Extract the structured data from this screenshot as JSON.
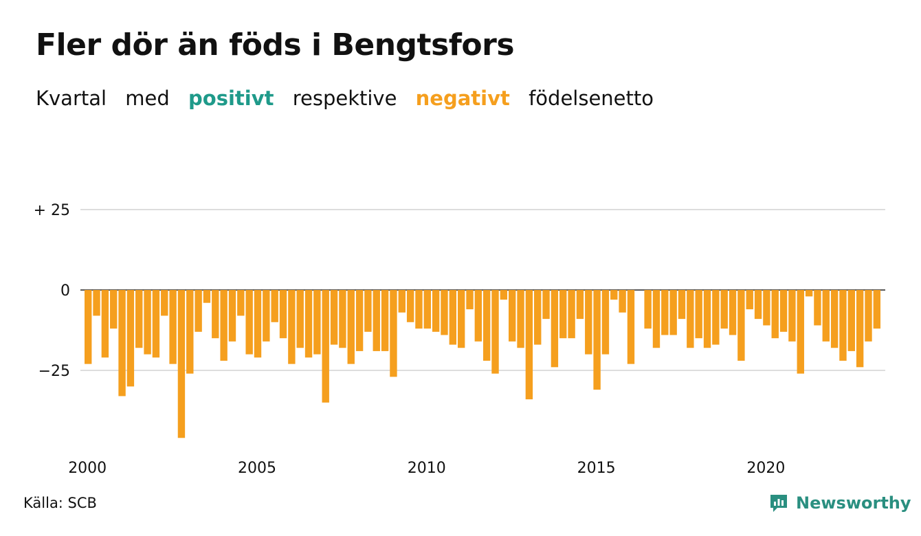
{
  "header": {
    "title": "Fler dör än föds i Bengtsfors",
    "subtitle": {
      "w1": "Kvartal",
      "w2": "med",
      "positive": "positivt",
      "w3": "respektive",
      "negative": "negativt",
      "w4": "födelsenetto"
    }
  },
  "footer": {
    "source": "Källa: SCB",
    "brand": "Newsworthy"
  },
  "colors": {
    "positive": "#1f9a8a",
    "negative": "#f59f1e",
    "brand": "#2a8f80",
    "grid": "#dddddd"
  },
  "chart_data": {
    "type": "bar",
    "title": "Fler dör än föds i Bengtsfors",
    "x_start_year": 2000,
    "x_tick_labels": [
      "2000",
      "2005",
      "2010",
      "2015",
      "2020"
    ],
    "y_tick_labels": [
      "+ 25",
      "0",
      "−25"
    ],
    "y_ticks": [
      25,
      0,
      -25
    ],
    "ylim": [
      -46,
      25
    ],
    "grid": "horizontal",
    "legend": "none",
    "values": [
      -23,
      -8,
      -21,
      -12,
      -33,
      -30,
      -18,
      -20,
      -21,
      -8,
      -23,
      -46,
      -26,
      -13,
      -4,
      -15,
      -22,
      -16,
      -8,
      -20,
      -21,
      -16,
      -10,
      -15,
      -23,
      -18,
      -21,
      -20,
      -35,
      -17,
      -18,
      -23,
      -19,
      -13,
      -19,
      -19,
      -27,
      -7,
      -10,
      -12,
      -12,
      -13,
      -14,
      -17,
      -18,
      -6,
      -16,
      -22,
      -26,
      -3,
      -16,
      -18,
      -34,
      -17,
      -9,
      -24,
      -15,
      -15,
      -9,
      -20,
      -31,
      -20,
      -3,
      -7,
      -23,
      0,
      -12,
      -18,
      -14,
      -14,
      -9,
      -18,
      -15,
      -18,
      -17,
      -12,
      -14,
      -22,
      -6,
      -9,
      -11,
      -15,
      -13,
      -16,
      -26,
      -2,
      -11,
      -16,
      -18,
      -22,
      -19,
      -24,
      -16,
      -12
    ]
  }
}
